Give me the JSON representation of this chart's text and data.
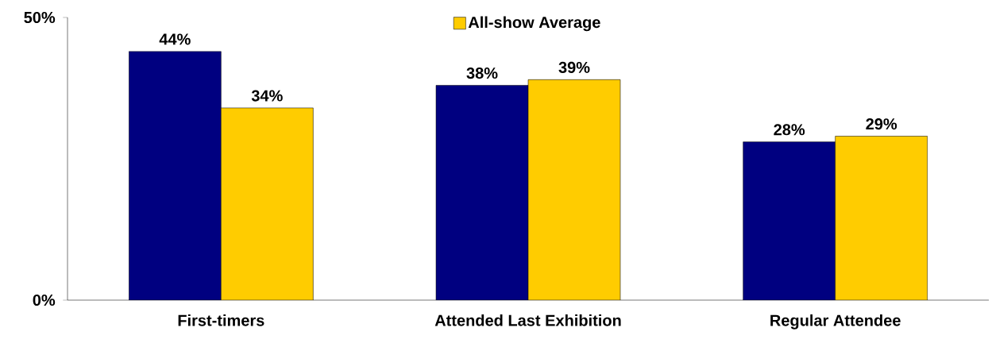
{
  "chart_data": {
    "type": "bar",
    "categories": [
      "First-timers",
      "Attended Last Exhibition",
      "Regular Attendee"
    ],
    "series": [
      {
        "color": "#000080",
        "values": [
          44,
          38,
          28
        ],
        "value_labels": [
          "44%",
          "38%",
          "28%"
        ]
      },
      {
        "name": "All-show Average",
        "color": "#ffcc00",
        "values": [
          34,
          39,
          29
        ],
        "value_labels": [
          "34%",
          "39%",
          "29%"
        ]
      }
    ],
    "ylim": [
      0,
      50
    ],
    "yticks": [
      {
        "value": 0,
        "label": "0%"
      },
      {
        "value": 50,
        "label": "50%"
      }
    ],
    "grid": false,
    "legend": "top"
  }
}
